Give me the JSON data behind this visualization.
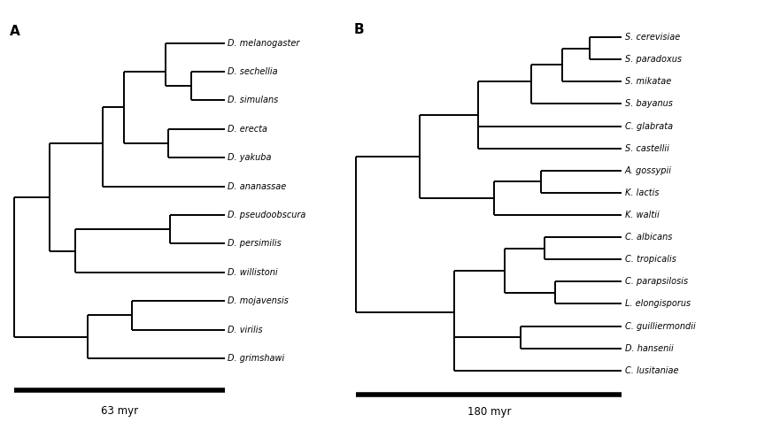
{
  "panel_A_label": "A",
  "panel_B_label": "B",
  "scale_A": "63 myr",
  "scale_B": "180 myr",
  "taxa_A": [
    "D. melanogaster",
    "D. sechellia",
    "D. simulans",
    "D. erecta",
    "D. yakuba",
    "D. ananassae",
    "D. pseudoobscura",
    "D. persimilis",
    "D. willistoni",
    "D. mojavensis",
    "D. virilis",
    "D. grimshawi"
  ],
  "taxa_B": [
    "S. cerevisiae",
    "S. paradoxus",
    "S. mikatae",
    "S. bayanus",
    "C. glabrata",
    "S. castellii",
    "A. gossypii",
    "K. lactis",
    "K. waltii",
    "C. albicans",
    "C. tropicalis",
    "C. parapsilosis",
    "L. elongisporus",
    "C. guilliermondii",
    "D. hansenii",
    "C. lusitaniae"
  ],
  "lw": 1.4,
  "fontsize_label": 7.0,
  "fontsize_panel": 11,
  "fontsize_scale": 8.5
}
